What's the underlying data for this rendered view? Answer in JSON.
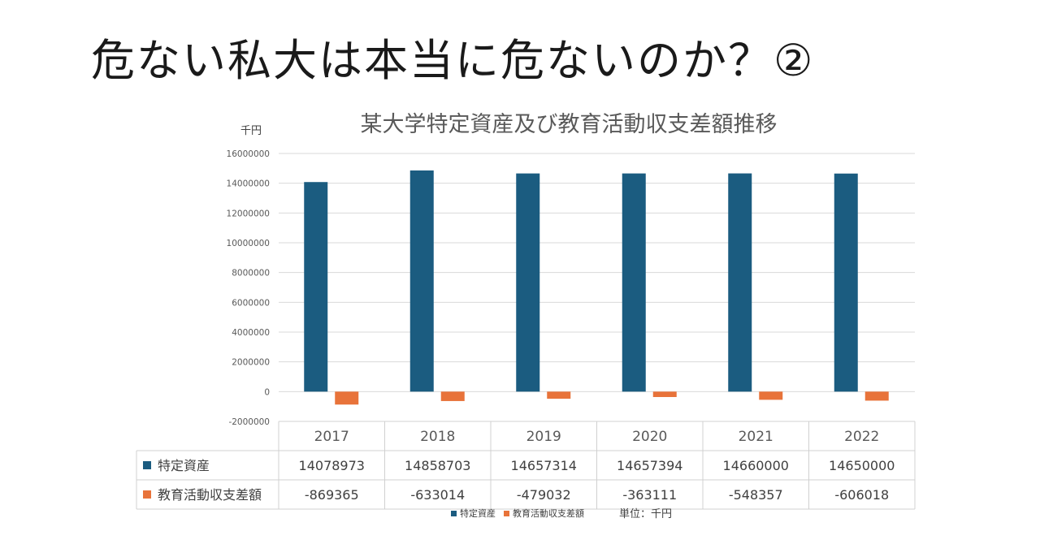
{
  "page": {
    "title": "危ない私大は本当に危ないのか？②"
  },
  "chart_data": {
    "type": "bar",
    "title": "某大学特定資産及び教育活動収支差額推移",
    "unit_label": "千円",
    "categories": [
      "2017",
      "2018",
      "2019",
      "2020",
      "2021",
      "2022"
    ],
    "series": [
      {
        "name": "特定資産",
        "color": "#1b5c80",
        "values": [
          14078973,
          14858703,
          14657314,
          14657394,
          14660000,
          14650000
        ]
      },
      {
        "name": "教育活動収支差額",
        "color": "#e8733a",
        "values": [
          -869365,
          -633014,
          -479032,
          -363111,
          -548357,
          -606018
        ]
      }
    ],
    "ylim": [
      -2000000,
      16000000
    ],
    "yticks": [
      16000000,
      14000000,
      12000000,
      10000000,
      8000000,
      6000000,
      4000000,
      2000000,
      0,
      -2000000
    ],
    "grid": true,
    "data_table": true,
    "legend_position": "bottom",
    "legend_note": "単位：千円"
  }
}
